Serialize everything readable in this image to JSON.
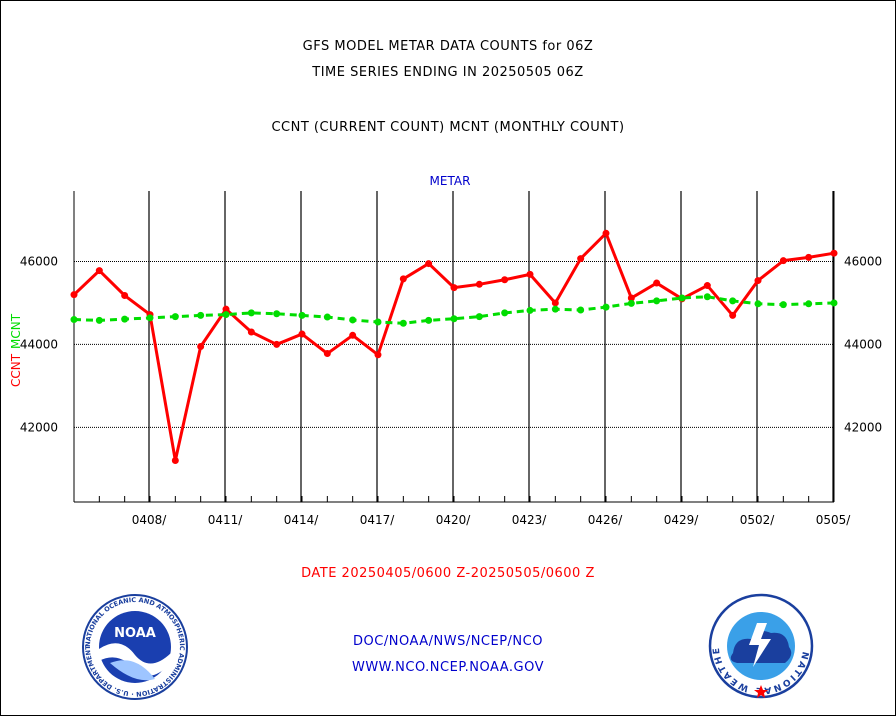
{
  "header": {
    "title_line1": "GFS MODEL METAR DATA COUNTS for 06Z",
    "title_line2": "TIME SERIES ENDING IN 20250505 06Z",
    "subtitle": "CCNT (CURRENT COUNT) MCNT (MONTHLY COUNT)"
  },
  "footer": {
    "date_range": "DATE 20250405/0600 Z-20250505/0600 Z",
    "credit_line1": "DOC/NOAA/NWS/NCEP/NCO",
    "credit_line2": "WWW.NCO.NCEP.NOAA.GOV"
  },
  "logos": {
    "noaa_text": "NOAA",
    "noaa_ring_text": "NATIONAL OCEANIC AND ATMOSPHERIC ADMINISTRATION · U.S. DEPARTMENT OF COMMERCE",
    "nws_ring_text": "NATIONAL WEATHER SERVICE"
  },
  "colors": {
    "ccnt": "#ff0000",
    "mcnt": "#00dd00",
    "panel_label": "#0000cc",
    "grid": "#000000"
  },
  "chart_data": {
    "type": "line",
    "panel_label": "METAR",
    "ylabel_ccnt": "CCNT",
    "ylabel_mcnt": "MCNT",
    "ylim": [
      40200,
      47700
    ],
    "yticks": [
      42000,
      44000,
      46000
    ],
    "ytick_labels": [
      "42000",
      "44000",
      "46000"
    ],
    "x_tick_labels": [
      "0408/",
      "0411/",
      "0414/",
      "0417/",
      "0420/",
      "0423/",
      "0426/",
      "0429/",
      "0502/",
      "0505/"
    ],
    "x_tick_days": [
      3,
      6,
      9,
      12,
      15,
      18,
      21,
      24,
      27,
      30
    ],
    "xlim": [
      0,
      30
    ],
    "grid": true,
    "series": [
      {
        "name": "CCNT",
        "style": "solid",
        "x": [
          0,
          1,
          2,
          3,
          4,
          5,
          6,
          7,
          8,
          9,
          10,
          11,
          12,
          13,
          14,
          15,
          16,
          17,
          18,
          19,
          20,
          21,
          22,
          23,
          24,
          25,
          26,
          27,
          28,
          29,
          30
        ],
        "values": [
          45200,
          45780,
          45180,
          44720,
          41200,
          43950,
          44850,
          44300,
          44000,
          44250,
          43780,
          44220,
          43750,
          45580,
          45950,
          45370,
          45450,
          45560,
          45690,
          45000,
          46070,
          46680,
          45120,
          45480,
          45100,
          45420,
          44700,
          45540,
          46020,
          46100,
          46200
        ]
      },
      {
        "name": "MCNT",
        "style": "dashed",
        "x": [
          0,
          1,
          2,
          3,
          4,
          5,
          6,
          7,
          8,
          9,
          10,
          11,
          12,
          13,
          14,
          15,
          16,
          17,
          18,
          19,
          20,
          21,
          22,
          23,
          24,
          25,
          26,
          27,
          28,
          29,
          30
        ],
        "values": [
          44600,
          44580,
          44610,
          44640,
          44670,
          44700,
          44720,
          44760,
          44740,
          44700,
          44660,
          44590,
          44540,
          44510,
          44580,
          44620,
          44670,
          44760,
          44820,
          44850,
          44830,
          44900,
          44990,
          45050,
          45120,
          45150,
          45050,
          44980,
          44960,
          44980,
          45000
        ]
      }
    ]
  }
}
